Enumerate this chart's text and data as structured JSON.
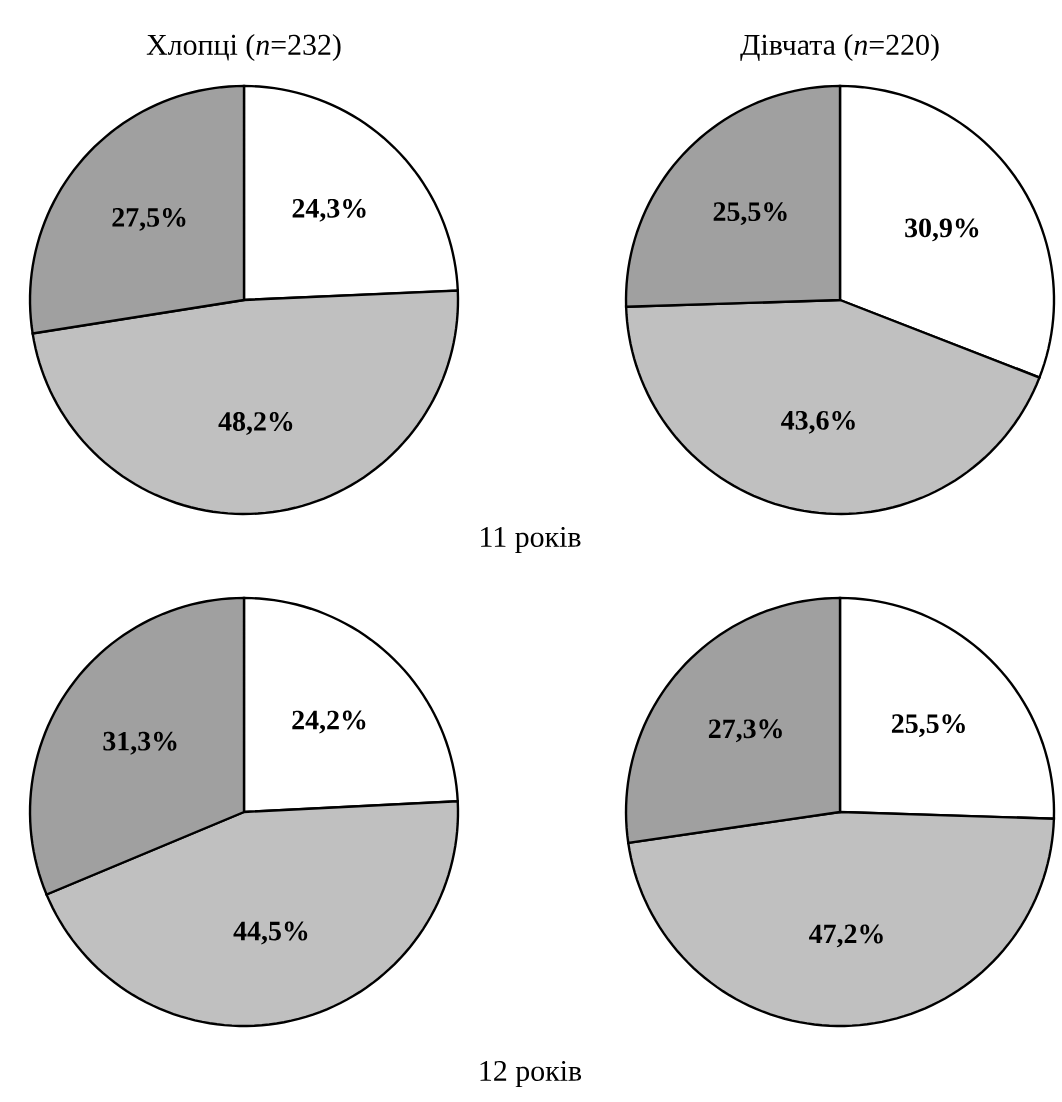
{
  "chart_data": [
    {
      "type": "pie",
      "title": "Хлопці (*n*=232)",
      "categories": [
        null,
        null,
        null
      ],
      "values": [
        24.3,
        48.2,
        27.5
      ],
      "value_labels": [
        "24,3%",
        "48,2%",
        "27,5%"
      ],
      "colors": [
        "#ffffff",
        "#c0c0c0",
        "#a0a0a0"
      ],
      "annotations": [
        "11 років"
      ]
    },
    {
      "type": "pie",
      "title": "Дівчата (*n*=220)",
      "categories": [
        null,
        null,
        null
      ],
      "values": [
        30.9,
        43.6,
        25.5
      ],
      "value_labels": [
        "30,9%",
        "43,6%",
        "25,5%"
      ],
      "colors": [
        "#ffffff",
        "#c0c0c0",
        "#a0a0a0"
      ]
    },
    {
      "type": "pie",
      "categories": [
        null,
        null,
        null
      ],
      "values": [
        24.2,
        44.5,
        31.3
      ],
      "value_labels": [
        "24,2%",
        "44,5%",
        "31,3%"
      ],
      "colors": [
        "#ffffff",
        "#c0c0c0",
        "#a0a0a0"
      ],
      "annotations": [
        "12 років"
      ]
    },
    {
      "type": "pie",
      "categories": [
        null,
        null,
        null
      ],
      "values": [
        25.5,
        47.2,
        27.3
      ],
      "value_labels": [
        "25,5%",
        "47,2%",
        "27,3%"
      ],
      "colors": [
        "#ffffff",
        "#c0c0c0",
        "#a0a0a0"
      ]
    }
  ]
}
